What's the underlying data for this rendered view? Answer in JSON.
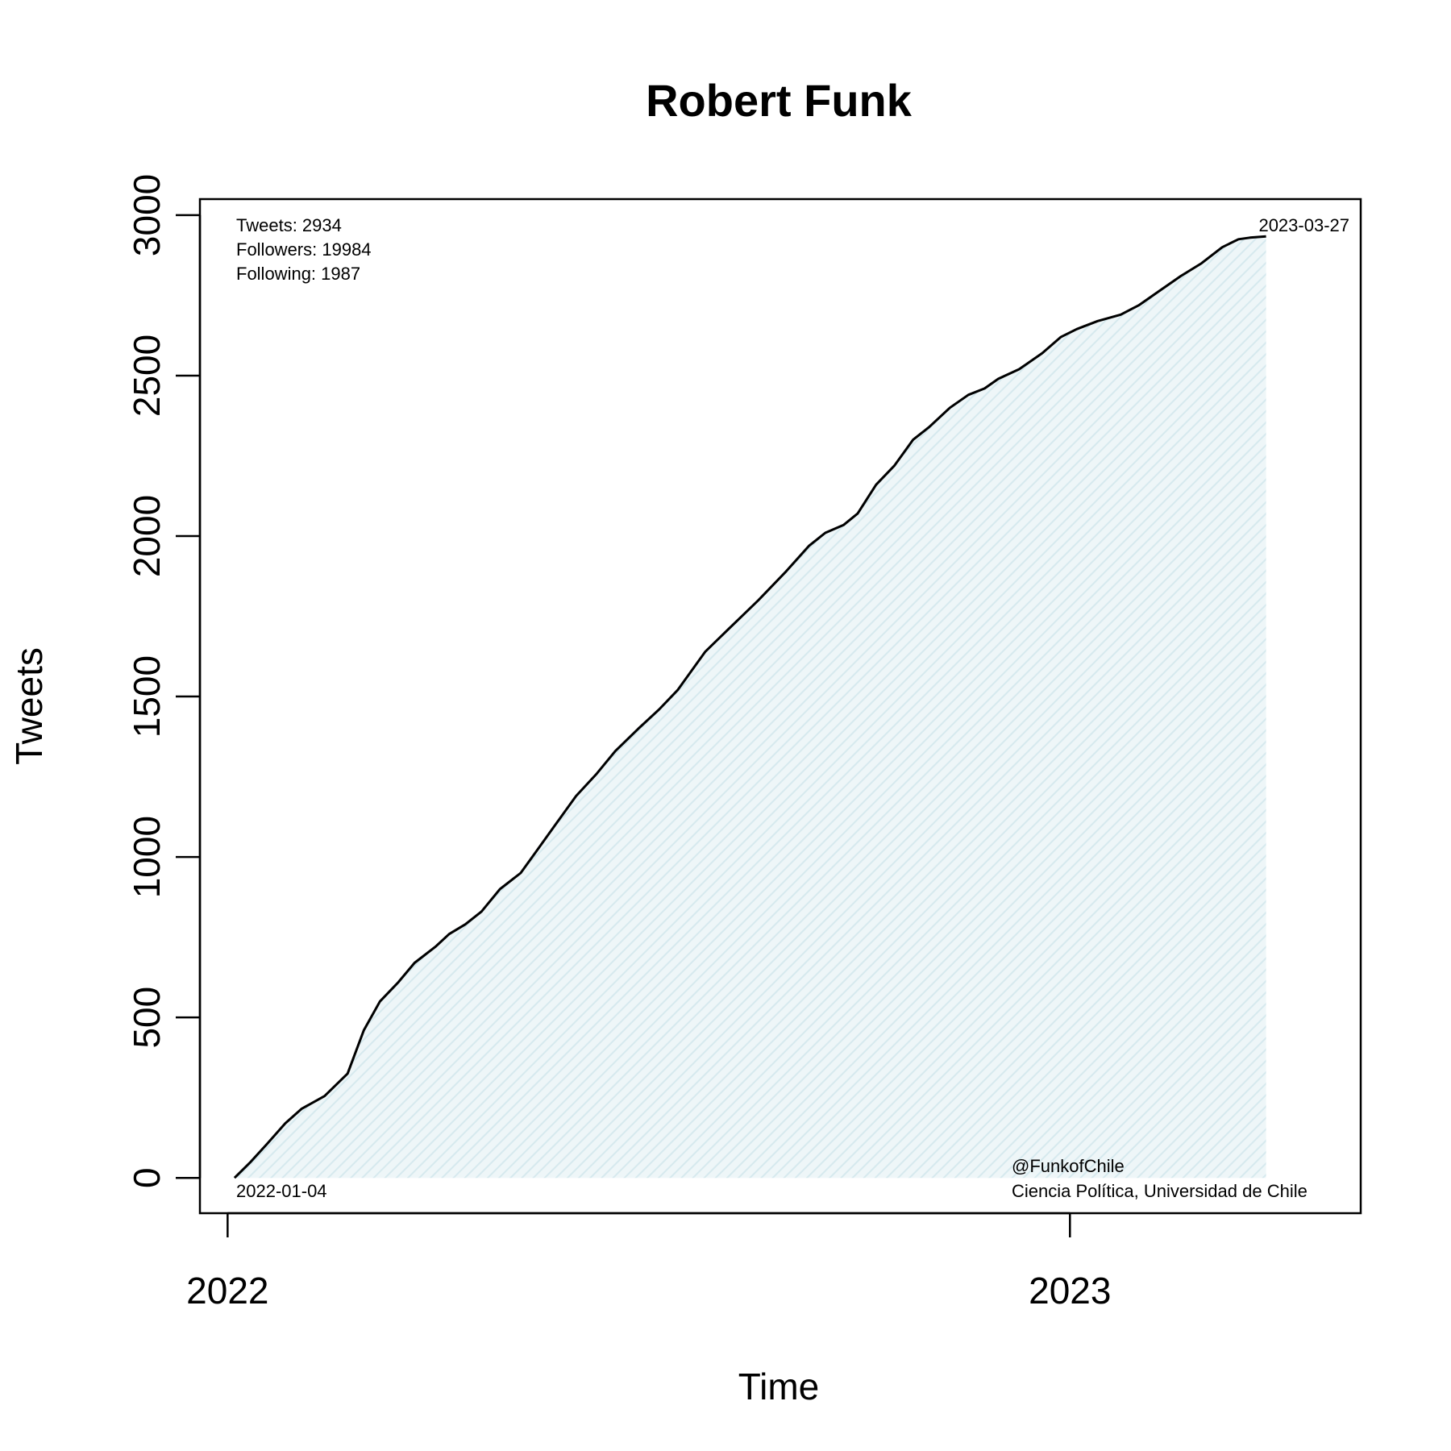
{
  "chart_data": {
    "type": "area",
    "title": "Robert Funk",
    "xlabel": "Time",
    "ylabel": "Tweets",
    "ylim": [
      -110,
      3050
    ],
    "yticks": [
      0,
      500,
      1000,
      1500,
      2000,
      2500,
      3000
    ],
    "xlim": [
      "2021-12-20",
      "2023-05-07"
    ],
    "xticks": [
      {
        "date": "2022-01-01",
        "label": "2022"
      },
      {
        "date": "2023-01-01",
        "label": "2023"
      }
    ],
    "grid": false,
    "fill_color": "#dcedf0",
    "line_color": "#000000",
    "series": [
      {
        "x": [
          "2022-01-04",
          "2022-01-11",
          "2022-01-18",
          "2022-01-26",
          "2022-02-02",
          "2022-02-12",
          "2022-02-22",
          "2022-03-01",
          "2022-03-08",
          "2022-03-16",
          "2022-03-23",
          "2022-04-01",
          "2022-04-07",
          "2022-04-14",
          "2022-04-21",
          "2022-04-29",
          "2022-05-08",
          "2022-05-15",
          "2022-05-24",
          "2022-06-01",
          "2022-06-10",
          "2022-06-18",
          "2022-06-28",
          "2022-07-07",
          "2022-07-15",
          "2022-07-27",
          "2022-08-06",
          "2022-08-19",
          "2022-08-31",
          "2022-09-10",
          "2022-09-17",
          "2022-09-25",
          "2022-10-01",
          "2022-10-09",
          "2022-10-17",
          "2022-10-25",
          "2022-11-01",
          "2022-11-10",
          "2022-11-18",
          "2022-11-25",
          "2022-12-01",
          "2022-12-10",
          "2022-12-20",
          "2022-12-28",
          "2023-01-04",
          "2023-01-13",
          "2023-01-23",
          "2023-01-31",
          "2023-02-08",
          "2023-02-18",
          "2023-02-27",
          "2023-03-08",
          "2023-03-15",
          "2023-03-20",
          "2023-03-27"
        ],
        "y": [
          0,
          50,
          105,
          170,
          215,
          255,
          325,
          460,
          550,
          610,
          670,
          720,
          760,
          790,
          830,
          900,
          950,
          1020,
          1110,
          1190,
          1260,
          1330,
          1400,
          1460,
          1520,
          1640,
          1710,
          1800,
          1890,
          1970,
          2010,
          2035,
          2070,
          2160,
          2220,
          2300,
          2340,
          2400,
          2440,
          2460,
          2490,
          2520,
          2570,
          2620,
          2645,
          2670,
          2690,
          2720,
          2760,
          2810,
          2850,
          2900,
          2925,
          2930,
          2934
        ]
      }
    ],
    "annotations": {
      "stats": [
        "Tweets: 2934",
        "Followers: 19984",
        "Following: 1987"
      ],
      "start_date": "2022-01-04",
      "end_date": "2023-03-27",
      "credit": [
        "@FunkofChile",
        "Ciencia Política, Universidad de Chile"
      ]
    }
  }
}
